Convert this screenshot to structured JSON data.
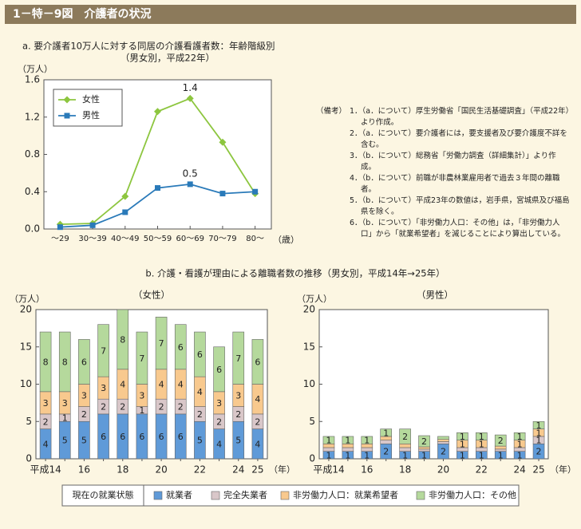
{
  "header": {
    "title": "1－特－9図　介護者の状況"
  },
  "notes": {
    "heading": "（備考）",
    "items": [
      "1．（a．について）厚生労働省「国民生活基礎調査」（平成22年）より作成。",
      "2．（a．について）要介護者には，要支援者及び要介護度不詳を含む。",
      "3．（b．について）総務省「労働力調査（詳細集計）」より作成。",
      "4．（b．について）前職が非農林業雇用者で過去３年間の離職者。",
      "5．（b．について）平成23年の数値は，岩手県，宮城県及び福島県を除く。",
      "6．（b．について）「非労働力人口：その他」は，「非労働力人口」から「就業希望者」を減じることにより算出している。"
    ]
  },
  "legend": {
    "title": "現在の就業状態"
  },
  "chart_data": [
    {
      "type": "line",
      "title": "a. 要介護者10万人に対する同居の介護看護者数：年齢階級別",
      "subtitle": "（男女別，平成22年）",
      "y_label": "（万人）",
      "x_label": "（歳）",
      "categories": [
        "～29",
        "30～39",
        "40～49",
        "50～59",
        "60～69",
        "70～79",
        "80～"
      ],
      "series": [
        {
          "name": "女性",
          "color": "#8dc63f",
          "marker": "diamond",
          "values": [
            0.05,
            0.06,
            0.35,
            1.26,
            1.4,
            0.93,
            0.38
          ],
          "value_labels": [
            null,
            null,
            null,
            null,
            "1.4",
            null,
            null
          ]
        },
        {
          "name": "男性",
          "color": "#2a7ab9",
          "marker": "square",
          "values": [
            0.02,
            0.04,
            0.18,
            0.44,
            0.48,
            0.38,
            0.4
          ],
          "value_labels": [
            null,
            null,
            null,
            null,
            "0.5",
            null,
            null
          ]
        }
      ],
      "ylim": [
        0,
        1.6
      ],
      "yticks": [
        {
          "value": 0,
          "label": "0.0"
        },
        0.4,
        0.8,
        1.2,
        1.6
      ],
      "grid": false,
      "legend": "upper left"
    },
    {
      "type": "stacked_bar",
      "title": "b. 介護・看護が理由による離職者数の推移（男女別，平成14年→25年）",
      "subtitle": "（女性）",
      "y_label": "（万人）",
      "x_label": "（年）",
      "categories": [
        "平成14",
        null,
        "16",
        null,
        "18",
        null,
        "20",
        null,
        "22",
        null,
        "24",
        "25"
      ],
      "show_values": true,
      "series": [
        {
          "name": "就業者",
          "color": "#5f9ad8",
          "values": [
            4,
            5,
            5,
            6,
            6,
            6,
            6,
            6,
            5,
            4,
            5,
            4
          ]
        },
        {
          "name": "完全失業者",
          "color": "#d9c7c9",
          "values": [
            2,
            1,
            2,
            2,
            2,
            1,
            2,
            2,
            2,
            2,
            2,
            2
          ]
        },
        {
          "name": "非労働力人口：就業希望者",
          "color": "#f8c98e",
          "values": [
            3,
            3,
            3,
            3,
            4,
            3,
            4,
            4,
            4,
            3,
            3,
            4
          ]
        },
        {
          "name": "非労働力人口：その他",
          "color": "#b5d99c",
          "values": [
            8,
            8,
            6,
            7,
            8,
            7,
            7,
            6,
            6,
            6,
            7,
            6
          ]
        }
      ],
      "ylim": [
        0,
        20
      ],
      "yticks": [
        0,
        5,
        10,
        15,
        20
      ],
      "grid": false
    },
    {
      "type": "stacked_bar",
      "subtitle": "（男性）",
      "y_label": "（万人）",
      "x_label": "（年）",
      "categories": [
        "平成14",
        null,
        "16",
        null,
        "18",
        null,
        "20",
        null,
        "22",
        null,
        "24",
        "25"
      ],
      "series": [
        {
          "name": "就業者",
          "color": "#5f9ad8",
          "values": [
            1,
            1,
            1,
            2,
            1,
            1,
            2,
            1,
            1,
            1,
            1,
            2
          ],
          "value_labels": [
            "1",
            "1",
            "1",
            "2",
            "1",
            "1",
            "2",
            "1",
            "1",
            "1",
            "1",
            "2"
          ]
        },
        {
          "name": "完全失業者",
          "color": "#d9c7c9",
          "values": [
            0.5,
            0.5,
            0.5,
            0.5,
            0.5,
            0.3,
            0.3,
            0.5,
            0.5,
            0.3,
            0.5,
            1
          ],
          "value_labels": [
            null,
            null,
            null,
            null,
            null,
            null,
            null,
            null,
            null,
            null,
            null,
            "1"
          ]
        },
        {
          "name": "非労働力人口：就業希望者",
          "color": "#f8c98e",
          "values": [
            0.5,
            0.5,
            0.5,
            0.5,
            0.5,
            0.3,
            0.3,
            1,
            1,
            0.4,
            1,
            1
          ],
          "value_labels": [
            null,
            null,
            null,
            null,
            null,
            null,
            null,
            "1",
            "1",
            null,
            "1",
            "1"
          ]
        },
        {
          "name": "非労働力人口：その他",
          "color": "#b5d99c",
          "values": [
            1,
            1,
            1,
            1,
            2,
            1.5,
            0.4,
            1,
            1,
            1.5,
            1,
            1
          ],
          "value_labels": [
            "1",
            "1",
            "1",
            "1",
            "2",
            "2",
            null,
            "1",
            "1",
            "2",
            "1",
            "1"
          ]
        }
      ],
      "ylim": [
        0,
        20
      ],
      "yticks": [
        0,
        5,
        10,
        15,
        20
      ],
      "grid": false
    }
  ]
}
